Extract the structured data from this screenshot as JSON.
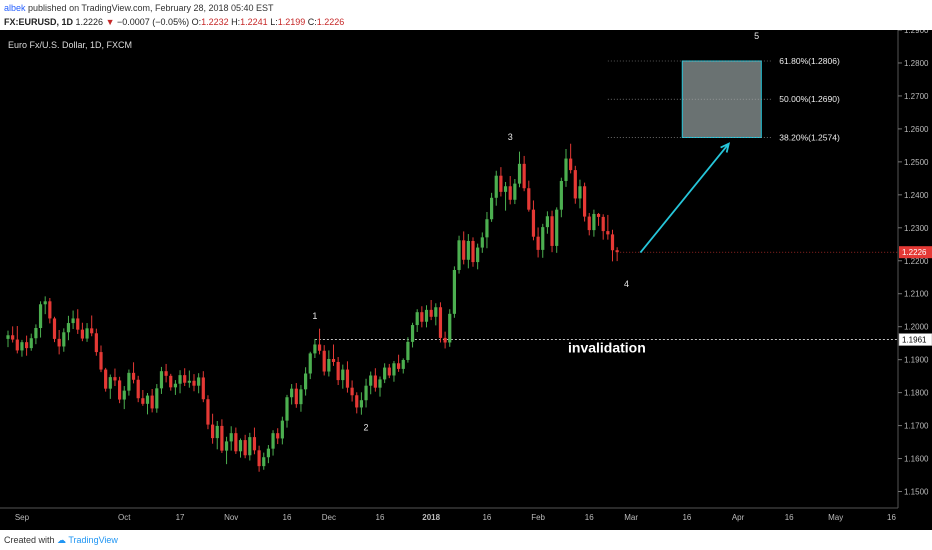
{
  "header": {
    "user": "albek",
    "published": "published on TradingView.com, February 28, 2018 05:40 EST",
    "symbol": "FX:EURUSD, 1D",
    "last": "1.2226",
    "change_arrow": "▼",
    "change": "−0.0007 (−0.05%)",
    "o_label": "O:",
    "o": "1.2232",
    "h_label": "H:",
    "h": "1.2241",
    "l_label": "L:",
    "l": "1.2199",
    "c_label": "C:",
    "c": "1.2226"
  },
  "footer": {
    "created": "Created with",
    "brand": "TradingView"
  },
  "colors": {
    "bg": "#000000",
    "up": "#4caf50",
    "down": "#e53935",
    "annot": "#e6e6e6",
    "arrow": "#26c6da",
    "zone": "#6a7272",
    "price_tag": "#e53935"
  },
  "chart_data": {
    "type": "candlestick",
    "title": "Euro Fx/U.S. Dollar, 1D, FXCM",
    "ylim": [
      1.145,
      1.29
    ],
    "y_ticks": [
      "1.2900",
      "1.2800",
      "1.2700",
      "1.2600",
      "1.2500",
      "1.2400",
      "1.2300",
      "1.2200",
      "1.2100",
      "1.2000",
      "1.1900",
      "1.1800",
      "1.1700",
      "1.1600",
      "1.1500"
    ],
    "x_ticks": [
      {
        "label": "Sep",
        "i": 3
      },
      {
        "label": "Oct",
        "i": 25
      },
      {
        "label": "17",
        "i": 37
      },
      {
        "label": "Nov",
        "i": 48
      },
      {
        "label": "16",
        "i": 60
      },
      {
        "label": "Dec",
        "i": 69
      },
      {
        "label": "16",
        "i": 80
      },
      {
        "label": "2018",
        "i": 91
      },
      {
        "label": "16",
        "i": 103
      },
      {
        "label": "Feb",
        "i": 114
      },
      {
        "label": "16",
        "i": 125
      },
      {
        "label": "Mar",
        "i": 134
      },
      {
        "label": "16",
        "i": 146
      },
      {
        "label": "Apr",
        "i": 157
      },
      {
        "label": "16",
        "i": 168
      },
      {
        "label": "May",
        "i": 178
      },
      {
        "label": "16",
        "i": 190
      }
    ],
    "last_price": "1.2226",
    "invalidation_level": 1.1961,
    "invalidation_tag": "1.1961",
    "invalidation_label": "invalidation",
    "fib_levels": [
      {
        "label": "61.80%(1.2806)",
        "price": 1.2806
      },
      {
        "label": "50.00%(1.2690)",
        "price": 1.269
      },
      {
        "label": "38.20%(1.2574)",
        "price": 1.2574
      }
    ],
    "waves": [
      {
        "label": "1",
        "i": 66,
        "price": 1.2005
      },
      {
        "label": "2",
        "i": 77,
        "price": 1.1728
      },
      {
        "label": "3",
        "i": 108,
        "price": 1.2548
      },
      {
        "label": "4",
        "i": 133,
        "price": 1.2163
      },
      {
        "label": "5",
        "i": 161,
        "price": 1.2855
      }
    ],
    "target_arrow": {
      "from": {
        "i": 136,
        "price": 1.2225
      },
      "to": {
        "i": 155,
        "price": 1.2555
      }
    },
    "candles": [
      [
        1.1963,
        1.1988,
        1.1938,
        1.1974
      ],
      [
        1.1974,
        1.2001,
        1.1952,
        1.1961
      ],
      [
        1.1961,
        1.2002,
        1.1919,
        1.1928
      ],
      [
        1.1928,
        1.196,
        1.1909,
        1.1953
      ],
      [
        1.1953,
        1.1973,
        1.1912,
        1.1935
      ],
      [
        1.1935,
        1.1979,
        1.1927,
        1.1965
      ],
      [
        1.1965,
        1.2007,
        1.1947,
        1.1996
      ],
      [
        1.1996,
        1.2077,
        1.1967,
        1.2068
      ],
      [
        1.2068,
        1.2092,
        1.2038,
        1.2077
      ],
      [
        1.2077,
        1.2087,
        1.201,
        1.2025
      ],
      [
        1.2025,
        1.203,
        1.1953,
        1.1963
      ],
      [
        1.1963,
        1.199,
        1.1916,
        1.194
      ],
      [
        1.194,
        1.1995,
        1.1924,
        1.1983
      ],
      [
        1.1983,
        1.2033,
        1.1959,
        1.2011
      ],
      [
        1.2011,
        1.2049,
        1.1993,
        1.2025
      ],
      [
        1.2025,
        1.2053,
        1.1978,
        1.1991
      ],
      [
        1.1991,
        1.2012,
        1.1956,
        1.1964
      ],
      [
        1.1964,
        1.2011,
        1.1954,
        1.1995
      ],
      [
        1.1995,
        1.2034,
        1.1971,
        1.198
      ],
      [
        1.198,
        1.1994,
        1.1912,
        1.1923
      ],
      [
        1.1923,
        1.1943,
        1.1862,
        1.187
      ],
      [
        1.187,
        1.1875,
        1.1803,
        1.1812
      ],
      [
        1.1812,
        1.1855,
        1.1781,
        1.1847
      ],
      [
        1.1847,
        1.1873,
        1.182,
        1.1837
      ],
      [
        1.1837,
        1.1848,
        1.1768,
        1.1779
      ],
      [
        1.1779,
        1.182,
        1.175,
        1.1806
      ],
      [
        1.1806,
        1.187,
        1.1791,
        1.186
      ],
      [
        1.186,
        1.1892,
        1.1828,
        1.1839
      ],
      [
        1.1839,
        1.1851,
        1.1771,
        1.1783
      ],
      [
        1.1783,
        1.1808,
        1.176,
        1.1766
      ],
      [
        1.1766,
        1.1799,
        1.1734,
        1.1791
      ],
      [
        1.1791,
        1.1811,
        1.174,
        1.1752
      ],
      [
        1.1752,
        1.1826,
        1.1739,
        1.1813
      ],
      [
        1.1813,
        1.1878,
        1.1796,
        1.1865
      ],
      [
        1.1865,
        1.1887,
        1.1831,
        1.1851
      ],
      [
        1.1851,
        1.1857,
        1.1806,
        1.1816
      ],
      [
        1.1816,
        1.1838,
        1.1793,
        1.1827
      ],
      [
        1.1827,
        1.1868,
        1.1798,
        1.1853
      ],
      [
        1.1853,
        1.1874,
        1.182,
        1.183
      ],
      [
        1.183,
        1.1867,
        1.1815,
        1.1836
      ],
      [
        1.1836,
        1.1856,
        1.1804,
        1.1821
      ],
      [
        1.1821,
        1.1859,
        1.1798,
        1.1846
      ],
      [
        1.1846,
        1.1865,
        1.1771,
        1.178
      ],
      [
        1.178,
        1.1792,
        1.1689,
        1.1703
      ],
      [
        1.1703,
        1.1736,
        1.1645,
        1.1662
      ],
      [
        1.1662,
        1.1714,
        1.1628,
        1.1699
      ],
      [
        1.1699,
        1.1719,
        1.1617,
        1.1624
      ],
      [
        1.1624,
        1.1666,
        1.1583,
        1.1652
      ],
      [
        1.1652,
        1.1698,
        1.1624,
        1.1677
      ],
      [
        1.1677,
        1.1694,
        1.1614,
        1.1622
      ],
      [
        1.1622,
        1.1661,
        1.1603,
        1.1656
      ],
      [
        1.1656,
        1.1672,
        1.1601,
        1.161
      ],
      [
        1.161,
        1.1678,
        1.1594,
        1.1665
      ],
      [
        1.1665,
        1.1694,
        1.1613,
        1.1625
      ],
      [
        1.1625,
        1.1639,
        1.156,
        1.1577
      ],
      [
        1.1577,
        1.1618,
        1.1566,
        1.1604
      ],
      [
        1.1604,
        1.1641,
        1.1586,
        1.163
      ],
      [
        1.163,
        1.1686,
        1.1609,
        1.1677
      ],
      [
        1.1677,
        1.1692,
        1.1644,
        1.1661
      ],
      [
        1.1661,
        1.1727,
        1.1643,
        1.1715
      ],
      [
        1.1715,
        1.1793,
        1.1694,
        1.1786
      ],
      [
        1.1786,
        1.1826,
        1.1764,
        1.1812
      ],
      [
        1.1812,
        1.1829,
        1.1754,
        1.1765
      ],
      [
        1.1765,
        1.1823,
        1.1742,
        1.181
      ],
      [
        1.181,
        1.1877,
        1.1791,
        1.1858
      ],
      [
        1.1858,
        1.1924,
        1.1841,
        1.1919
      ],
      [
        1.1919,
        1.1963,
        1.1905,
        1.1946
      ],
      [
        1.1946,
        1.1994,
        1.1916,
        1.1927
      ],
      [
        1.1927,
        1.1944,
        1.1852,
        1.1864
      ],
      [
        1.1864,
        1.1928,
        1.1849,
        1.1902
      ],
      [
        1.1902,
        1.1946,
        1.1881,
        1.1893
      ],
      [
        1.1893,
        1.1908,
        1.1823,
        1.1838
      ],
      [
        1.1838,
        1.1885,
        1.1812,
        1.187
      ],
      [
        1.187,
        1.1895,
        1.18,
        1.1815
      ],
      [
        1.1815,
        1.1837,
        1.1773,
        1.1792
      ],
      [
        1.1792,
        1.1801,
        1.1737,
        1.1755
      ],
      [
        1.1755,
        1.1801,
        1.1733,
        1.1777
      ],
      [
        1.1777,
        1.1842,
        1.1755,
        1.1821
      ],
      [
        1.1821,
        1.1864,
        1.1795,
        1.1852
      ],
      [
        1.1852,
        1.1874,
        1.1803,
        1.1815
      ],
      [
        1.1815,
        1.1849,
        1.1788,
        1.184
      ],
      [
        1.184,
        1.1889,
        1.1829,
        1.1876
      ],
      [
        1.1876,
        1.1887,
        1.1844,
        1.1852
      ],
      [
        1.1852,
        1.1896,
        1.1833,
        1.1889
      ],
      [
        1.1889,
        1.1915,
        1.1863,
        1.1872
      ],
      [
        1.1872,
        1.1904,
        1.1858,
        1.1899
      ],
      [
        1.1899,
        1.1968,
        1.1891,
        1.1954
      ],
      [
        1.1954,
        1.2012,
        1.1937,
        1.2005
      ],
      [
        1.2005,
        1.2053,
        1.1984,
        1.2044
      ],
      [
        1.2044,
        1.2062,
        1.1998,
        1.2015
      ],
      [
        1.2015,
        1.2065,
        1.1998,
        1.2051
      ],
      [
        1.2051,
        1.2081,
        1.202,
        1.203
      ],
      [
        1.203,
        1.2071,
        1.2004,
        1.2059
      ],
      [
        1.2059,
        1.2074,
        1.1952,
        1.1966
      ],
      [
        1.1966,
        1.1985,
        1.1934,
        1.1952
      ],
      [
        1.1952,
        1.2053,
        1.1939,
        1.2039
      ],
      [
        1.2039,
        1.2183,
        1.2027,
        1.2172
      ],
      [
        1.2172,
        1.2276,
        1.2161,
        1.2262
      ],
      [
        1.2262,
        1.2289,
        1.2189,
        1.2203
      ],
      [
        1.2203,
        1.2281,
        1.2177,
        1.226
      ],
      [
        1.226,
        1.2271,
        1.2182,
        1.2196
      ],
      [
        1.2196,
        1.2252,
        1.2174,
        1.224
      ],
      [
        1.224,
        1.2286,
        1.2224,
        1.2271
      ],
      [
        1.2271,
        1.2348,
        1.2238,
        1.2326
      ],
      [
        1.2326,
        1.2406,
        1.2318,
        1.2391
      ],
      [
        1.2391,
        1.2473,
        1.2367,
        1.2458
      ],
      [
        1.2458,
        1.2484,
        1.2395,
        1.2409
      ],
      [
        1.2409,
        1.2439,
        1.2352,
        1.2426
      ],
      [
        1.2426,
        1.2457,
        1.2371,
        1.2385
      ],
      [
        1.2385,
        1.2448,
        1.2372,
        1.2434
      ],
      [
        1.2434,
        1.2531,
        1.2423,
        1.2494
      ],
      [
        1.2494,
        1.2518,
        1.2411,
        1.242
      ],
      [
        1.242,
        1.2443,
        1.2349,
        1.2355
      ],
      [
        1.2355,
        1.2383,
        1.2262,
        1.2273
      ],
      [
        1.2273,
        1.2301,
        1.221,
        1.2233
      ],
      [
        1.2233,
        1.2312,
        1.2209,
        1.2302
      ],
      [
        1.2302,
        1.235,
        1.2282,
        1.2335
      ],
      [
        1.2335,
        1.2352,
        1.2226,
        1.2245
      ],
      [
        1.2245,
        1.2362,
        1.2224,
        1.2355
      ],
      [
        1.2355,
        1.2452,
        1.2332,
        1.2442
      ],
      [
        1.2442,
        1.2539,
        1.2424,
        1.251
      ],
      [
        1.251,
        1.2555,
        1.2465,
        1.2475
      ],
      [
        1.2475,
        1.2488,
        1.2373,
        1.2389
      ],
      [
        1.2389,
        1.2446,
        1.2359,
        1.2426
      ],
      [
        1.2426,
        1.2437,
        1.2319,
        1.2334
      ],
      [
        1.2334,
        1.2345,
        1.2277,
        1.2293
      ],
      [
        1.2293,
        1.2355,
        1.2273,
        1.2342
      ],
      [
        1.2342,
        1.2345,
        1.2306,
        1.2333
      ],
      [
        1.2333,
        1.2341,
        1.2264,
        1.229
      ],
      [
        1.229,
        1.2339,
        1.2264,
        1.228
      ],
      [
        1.228,
        1.2294,
        1.2198,
        1.2232
      ],
      [
        1.2232,
        1.2241,
        1.2199,
        1.2226
      ]
    ]
  }
}
